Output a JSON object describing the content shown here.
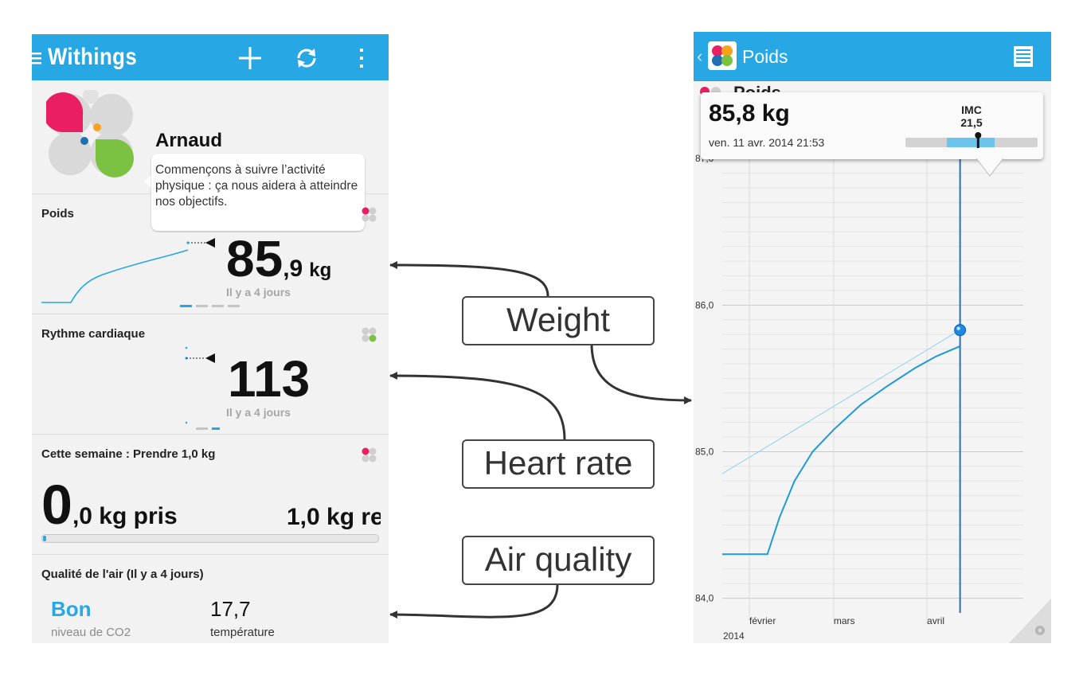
{
  "left_app": {
    "header": {
      "title": "Withings",
      "icons": [
        "menu-icon",
        "add-icon",
        "refresh-icon",
        "overflow-menu-icon"
      ]
    },
    "profile": {
      "name": "Arnaud",
      "message": "Commençons à suivre l’activité physique : ça nous aidera à atteindre nos objectifs."
    },
    "weight_card": {
      "title": "Poids",
      "value_int": "85",
      "value_dec": ",9",
      "unit": "kg",
      "ago": "Il y a 4 jours",
      "page_indicator": {
        "count": 4,
        "active": 0
      }
    },
    "heart_card": {
      "title": "Rythme cardiaque",
      "value": "113",
      "ago": "Il y a 4 jours",
      "page_indicator": {
        "count": 2,
        "active": 1
      }
    },
    "goal_card": {
      "title": "Cette semaine : Prendre 1,0 kg",
      "gained_int": "0",
      "gained_rest": ",0 kg pris",
      "remaining": "1,0 kg res",
      "progress": 0.01
    },
    "air_card": {
      "title": "Qualité de l'air (Il y a 4 jours)",
      "co2_value": "Bon",
      "co2_label": "niveau de CO2",
      "temp_value": "17,7",
      "temp_label": "température"
    }
  },
  "callouts": {
    "weight": "Weight",
    "heart": "Heart rate",
    "air": "Air quality"
  },
  "right_app": {
    "header": {
      "title": "Poids",
      "hidden_label": "Poids"
    },
    "tooltip": {
      "weight": "85,8 kg",
      "date": "ven. 11 avr. 2014 21:53",
      "imc_label": "IMC",
      "imc_value": "21,5",
      "imc_position": 0.55
    },
    "colors": {
      "accent": "#27a7e4",
      "line": "#1e9ad6",
      "selection": "#2a6fba"
    }
  },
  "chart_data": {
    "type": "line",
    "title": "",
    "xlabel": "",
    "ylabel": "",
    "y_ticks": [
      "87,0",
      "86,0",
      "85,0",
      "84,0"
    ],
    "ylim": [
      83.9,
      87.05
    ],
    "x_tick_labels": [
      "février",
      "mars",
      "avril"
    ],
    "x_year_label": "2014",
    "x_ticks_days": [
      31,
      59,
      90
    ],
    "xlim_days": [
      22,
      122
    ],
    "series": [
      {
        "role": "smoothed",
        "points": [
          [
            22,
            84.3
          ],
          [
            37,
            84.3
          ],
          [
            41,
            84.55
          ],
          [
            46,
            84.8
          ],
          [
            52,
            85.0
          ],
          [
            59,
            85.15
          ],
          [
            68,
            85.32
          ],
          [
            77,
            85.45
          ],
          [
            86,
            85.57
          ],
          [
            93,
            85.65
          ],
          [
            101,
            85.72
          ]
        ]
      },
      {
        "role": "trend",
        "points": [
          [
            22,
            84.85
          ],
          [
            101,
            85.83
          ]
        ]
      }
    ],
    "selected_point": {
      "day": 101,
      "value": 85.83
    }
  }
}
